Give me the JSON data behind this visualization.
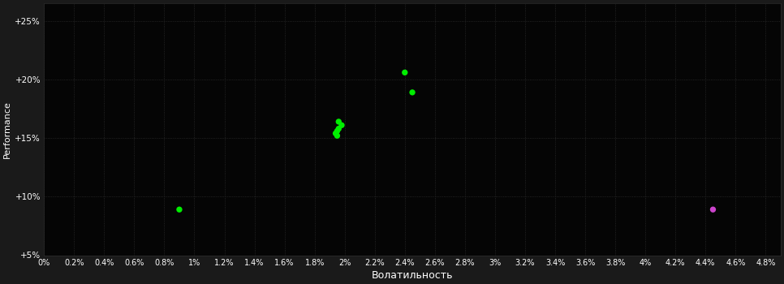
{
  "background_color": "#1a1a1a",
  "plot_bg_color": "#050505",
  "grid_color": "#2d2d2d",
  "text_color": "#ffffff",
  "xlabel": "Волатильность",
  "ylabel": "Performance",
  "xlim": [
    0.0,
    0.049
  ],
  "ylim": [
    0.05,
    0.265
  ],
  "xtick_values": [
    0.0,
    0.002,
    0.004,
    0.006,
    0.008,
    0.01,
    0.012,
    0.014,
    0.016,
    0.018,
    0.02,
    0.022,
    0.024,
    0.026,
    0.028,
    0.03,
    0.032,
    0.034,
    0.036,
    0.038,
    0.04,
    0.042,
    0.044,
    0.046,
    0.048
  ],
  "ytick_values": [
    0.05,
    0.1,
    0.15,
    0.2,
    0.25
  ],
  "green_points": [
    [
      0.009,
      0.089
    ],
    [
      0.0196,
      0.164
    ],
    [
      0.0198,
      0.161
    ],
    [
      0.0196,
      0.158
    ],
    [
      0.0195,
      0.156
    ],
    [
      0.0194,
      0.154
    ],
    [
      0.0195,
      0.152
    ],
    [
      0.024,
      0.206
    ],
    [
      0.0245,
      0.189
    ]
  ],
  "magenta_points": [
    [
      0.0445,
      0.089
    ]
  ],
  "green_color": "#00ee00",
  "magenta_color": "#cc44cc",
  "marker_size": 28
}
